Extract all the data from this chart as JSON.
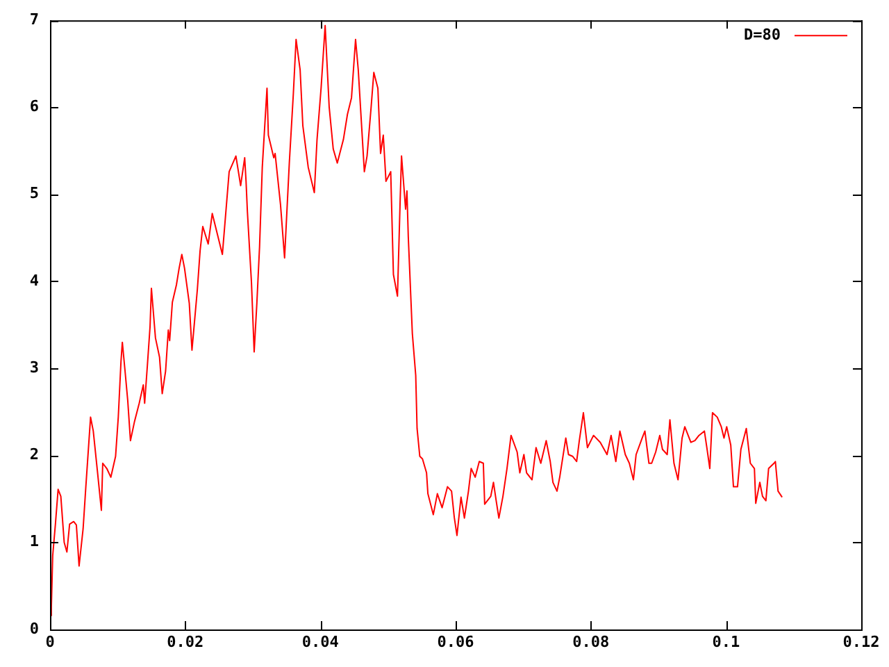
{
  "chart_data": {
    "type": "line",
    "xlim": [
      0,
      0.12
    ],
    "ylim": [
      0,
      7
    ],
    "xticks": [
      0,
      0.02,
      0.04,
      0.06,
      0.08,
      0.1,
      0.12
    ],
    "yticks": [
      0,
      1,
      2,
      3,
      4,
      5,
      6,
      7
    ],
    "grid": false,
    "legend": "top right",
    "marker": "none",
    "line_style": "solid",
    "series": [
      {
        "name": "D=80",
        "color": "#ff0000",
        "x": [
          0,
          0.0002,
          0.0004,
          0.0008,
          0.0012,
          0.0016,
          0.0021,
          0.0025,
          0.0029,
          0.0035,
          0.0039,
          0.0043,
          0.0049,
          0.0053,
          0.006,
          0.0064,
          0.007,
          0.0076,
          0.0078,
          0.0084,
          0.009,
          0.0097,
          0.0101,
          0.0105,
          0.0107,
          0.0111,
          0.0115,
          0.0119,
          0.0125,
          0.0132,
          0.0138,
          0.014,
          0.0144,
          0.0148,
          0.015,
          0.0156,
          0.0162,
          0.0166,
          0.0171,
          0.0175,
          0.0177,
          0.0181,
          0.0187,
          0.0191,
          0.0195,
          0.0199,
          0.0206,
          0.021,
          0.0214,
          0.0218,
          0.0222,
          0.0226,
          0.0234,
          0.024,
          0.0255,
          0.0265,
          0.0275,
          0.0282,
          0.0288,
          0.029,
          0.0292,
          0.0298,
          0.0302,
          0.0306,
          0.031,
          0.0314,
          0.0321,
          0.0323,
          0.0331,
          0.0333,
          0.0341,
          0.0347,
          0.0354,
          0.036,
          0.0364,
          0.037,
          0.0374,
          0.0382,
          0.0391,
          0.0395,
          0.0401,
          0.0407,
          0.0413,
          0.0419,
          0.0425,
          0.0434,
          0.044,
          0.0446,
          0.0452,
          0.0456,
          0.0465,
          0.0469,
          0.0475,
          0.0479,
          0.0485,
          0.0489,
          0.0493,
          0.0497,
          0.0504,
          0.0508,
          0.0514,
          0.0518,
          0.052,
          0.0526,
          0.0528,
          0.053,
          0.0536,
          0.0541,
          0.0543,
          0.0547,
          0.0551,
          0.0557,
          0.0559,
          0.0567,
          0.0573,
          0.058,
          0.0588,
          0.0594,
          0.0598,
          0.0602,
          0.0608,
          0.0613,
          0.0619,
          0.0623,
          0.0629,
          0.0635,
          0.0641,
          0.0643,
          0.0652,
          0.0656,
          0.066,
          0.0664,
          0.067,
          0.0676,
          0.0682,
          0.0691,
          0.0695,
          0.0701,
          0.0705,
          0.0713,
          0.0719,
          0.0726,
          0.0734,
          0.074,
          0.0744,
          0.075,
          0.0754,
          0.0763,
          0.0767,
          0.0773,
          0.0779,
          0.0783,
          0.0789,
          0.0795,
          0.0804,
          0.0814,
          0.0824,
          0.083,
          0.0837,
          0.0843,
          0.0851,
          0.0857,
          0.0863,
          0.0867,
          0.0876,
          0.088,
          0.0886,
          0.089,
          0.0896,
          0.0902,
          0.0906,
          0.0913,
          0.0917,
          0.0923,
          0.0929,
          0.0935,
          0.0939,
          0.0948,
          0.0954,
          0.096,
          0.0968,
          0.0972,
          0.0976,
          0.098,
          0.0987,
          0.0993,
          0.0997,
          0.1001,
          0.1007,
          0.1011,
          0.1017,
          0.1022,
          0.103,
          0.1036,
          0.1042,
          0.1044,
          0.105,
          0.1054,
          0.1059,
          0.1063,
          0.1071,
          0.1073,
          0.1077,
          0.1083
        ],
        "values": [
          0.16,
          0.26,
          0.85,
          1.21,
          1.61,
          1.53,
          1.0,
          0.89,
          1.21,
          1.24,
          1.2,
          0.73,
          1.16,
          1.64,
          2.44,
          2.28,
          1.83,
          1.37,
          1.91,
          1.85,
          1.75,
          1.99,
          2.44,
          3.08,
          3.3,
          2.97,
          2.63,
          2.17,
          2.39,
          2.6,
          2.81,
          2.6,
          3.03,
          3.48,
          3.92,
          3.35,
          3.13,
          2.71,
          2.97,
          3.44,
          3.32,
          3.76,
          3.96,
          4.15,
          4.31,
          4.15,
          3.75,
          3.21,
          3.56,
          3.91,
          4.35,
          4.63,
          4.43,
          4.78,
          4.31,
          5.26,
          5.44,
          5.1,
          5.42,
          5.15,
          4.8,
          3.99,
          3.19,
          3.75,
          4.4,
          5.31,
          6.22,
          5.68,
          5.42,
          5.47,
          4.88,
          4.27,
          5.36,
          6.16,
          6.78,
          6.43,
          5.79,
          5.31,
          5.02,
          5.63,
          6.22,
          6.94,
          6.0,
          5.52,
          5.36,
          5.63,
          5.92,
          6.11,
          6.78,
          6.43,
          5.26,
          5.44,
          6.0,
          6.4,
          6.22,
          5.47,
          5.68,
          5.15,
          5.26,
          4.08,
          3.83,
          4.94,
          5.44,
          4.83,
          5.04,
          4.51,
          3.4,
          2.92,
          2.31,
          1.99,
          1.96,
          1.8,
          1.56,
          1.32,
          1.56,
          1.4,
          1.64,
          1.59,
          1.29,
          1.08,
          1.52,
          1.28,
          1.59,
          1.85,
          1.75,
          1.93,
          1.91,
          1.44,
          1.53,
          1.69,
          1.48,
          1.28,
          1.53,
          1.85,
          2.23,
          2.04,
          1.8,
          2.01,
          1.8,
          1.72,
          2.09,
          1.91,
          2.17,
          1.93,
          1.69,
          1.59,
          1.75,
          2.2,
          2.01,
          1.99,
          1.93,
          2.17,
          2.49,
          2.09,
          2.23,
          2.15,
          2.01,
          2.23,
          1.93,
          2.28,
          2.01,
          1.91,
          1.72,
          2.01,
          2.2,
          2.28,
          1.91,
          1.91,
          2.04,
          2.23,
          2.07,
          2.01,
          2.41,
          1.91,
          1.72,
          2.2,
          2.33,
          2.15,
          2.17,
          2.23,
          2.28,
          2.07,
          1.85,
          2.49,
          2.44,
          2.33,
          2.2,
          2.33,
          2.12,
          1.64,
          1.64,
          2.07,
          2.31,
          1.91,
          1.85,
          1.45,
          1.69,
          1.53,
          1.48,
          1.85,
          1.91,
          1.93,
          1.59,
          1.52
        ]
      }
    ]
  }
}
